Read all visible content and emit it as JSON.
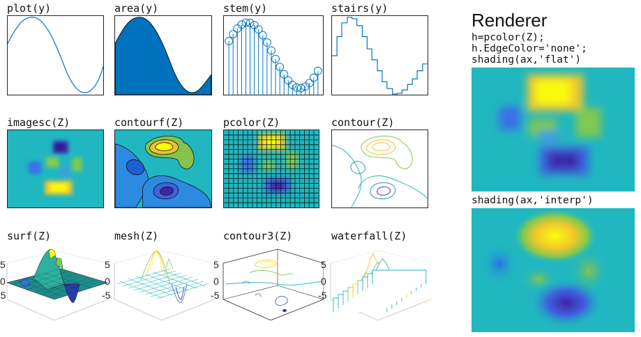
{
  "row1": {
    "labels": [
      "plot(y)",
      "area(y)",
      "stem(y)",
      "stairs(y)"
    ]
  },
  "row2": {
    "labels": [
      "imagesc(Z)",
      "contourf(Z)",
      "pcolor(Z)",
      "contour(Z)"
    ]
  },
  "row3": {
    "labels": [
      "surf(Z)",
      "mesh(Z)",
      "contour3(Z)",
      "waterfall(Z)"
    ],
    "ticks": [
      "5",
      "0",
      "-5"
    ]
  },
  "renderer": {
    "title": "Renderer",
    "code": [
      "h=pcolor(Z);",
      "h.EdgeColor='none';",
      "shading(ax,'flat')"
    ],
    "interp_label": "shading(ax,'interp')"
  },
  "colors": {
    "line": "#0072BD",
    "bg_teal": "#20B7C0",
    "yellow": "#F9FB0E",
    "blue": "#3E26A8"
  }
}
